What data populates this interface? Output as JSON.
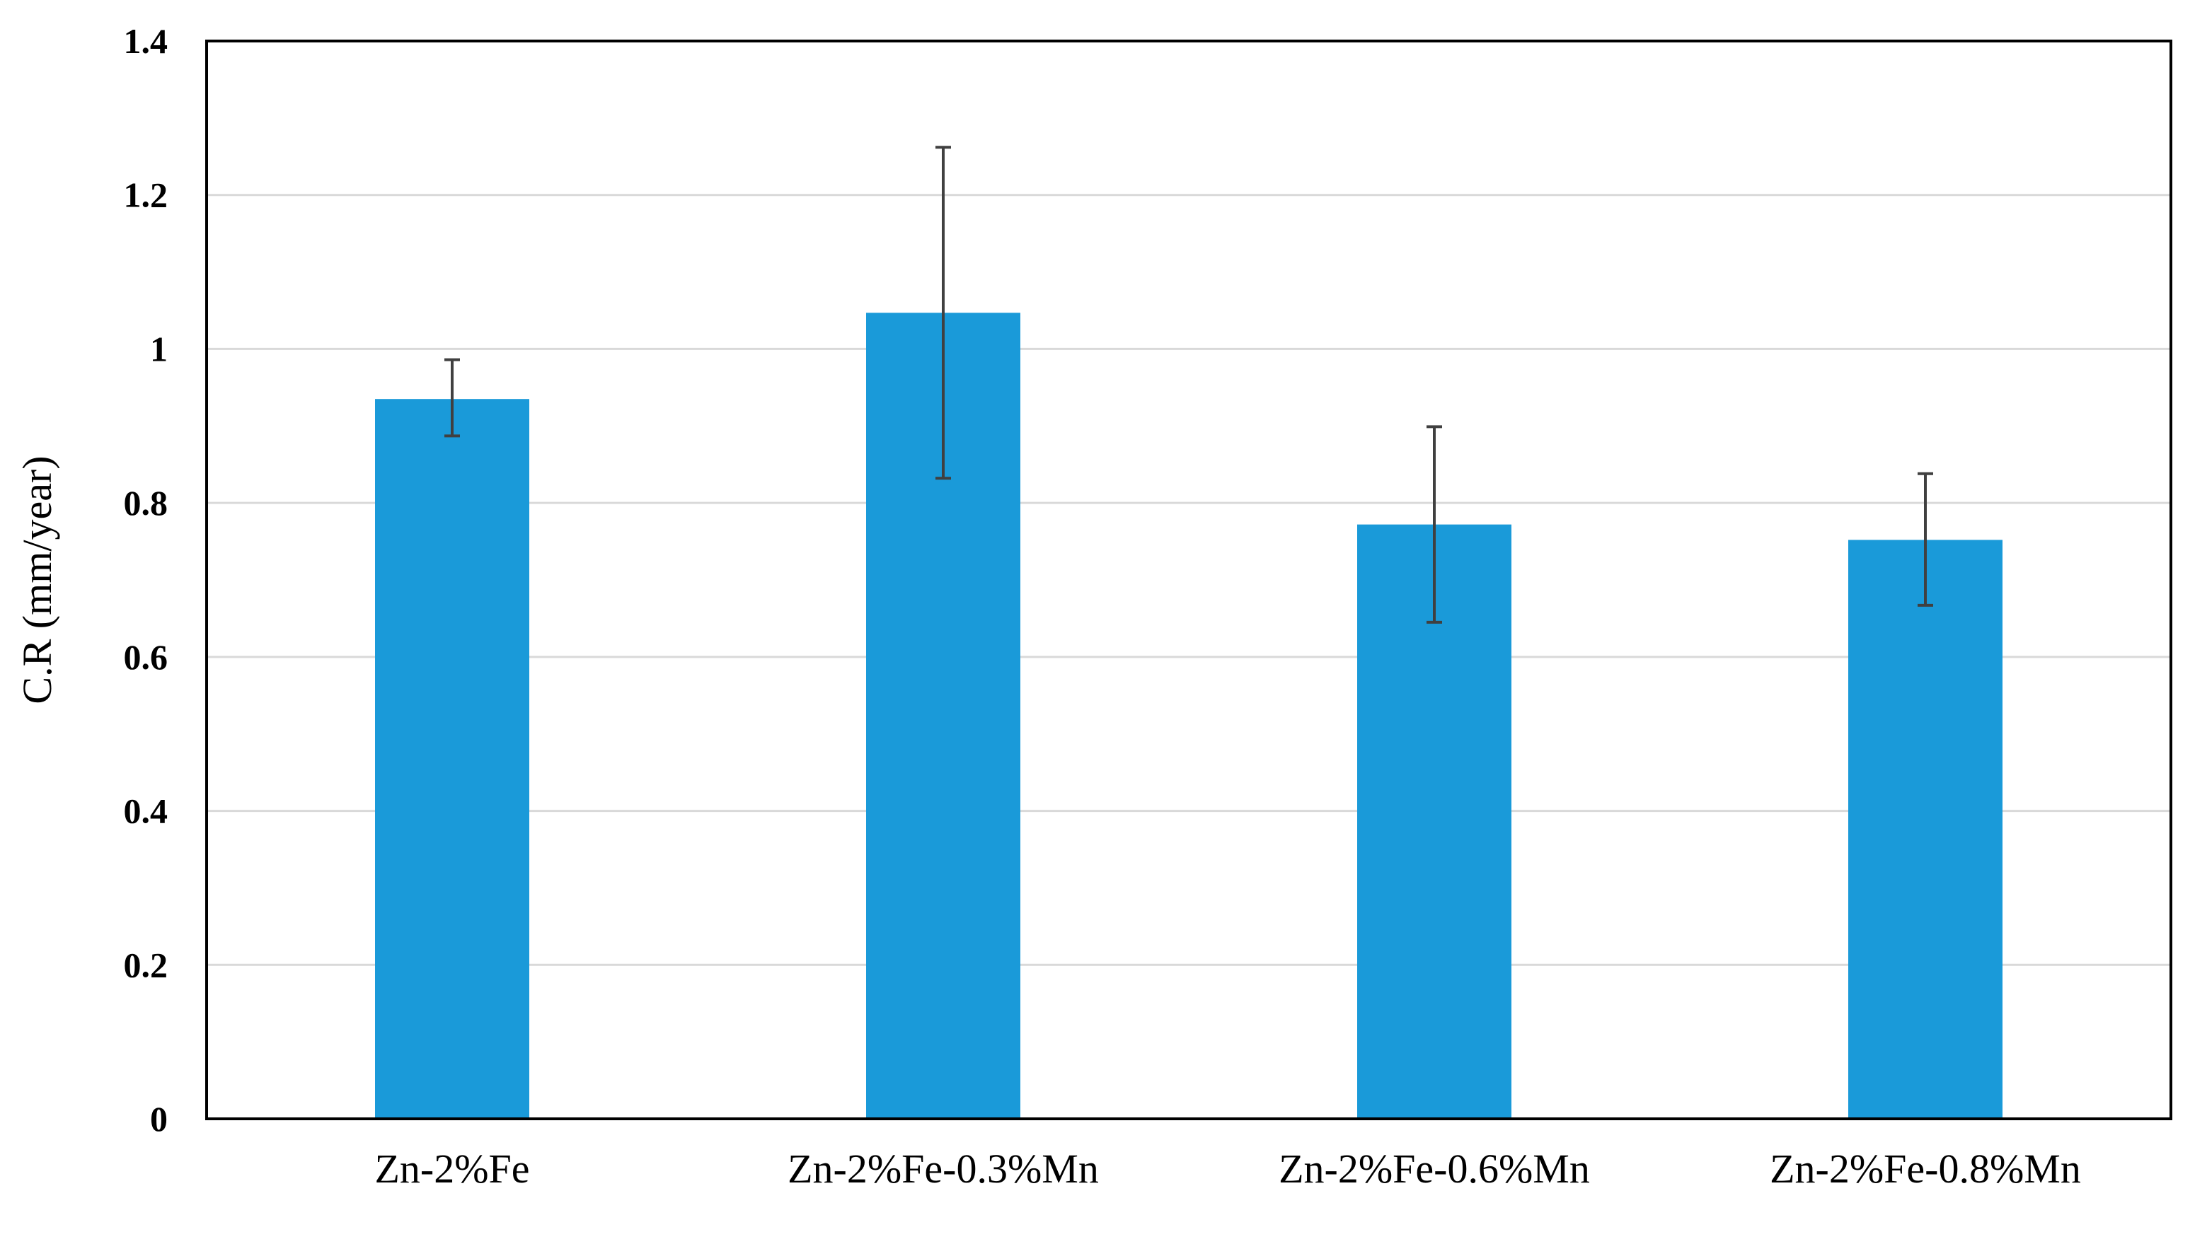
{
  "chart_data": {
    "type": "bar",
    "title": "",
    "xlabel": "",
    "ylabel": "C.R (mm/year)",
    "categories": [
      "Zn-2%Fe",
      "Zn-2%Fe-0.3%Mn",
      "Zn-2%Fe-0.6%Mn",
      "Zn-2%Fe-0.8%Mn"
    ],
    "values": [
      0.935,
      1.047,
      0.772,
      0.752
    ],
    "error_low": [
      0.887,
      0.832,
      0.645,
      0.667
    ],
    "error_high": [
      0.986,
      1.262,
      0.899,
      0.838
    ],
    "ylim": [
      0,
      1.4
    ],
    "yticks": [
      0,
      0.2,
      0.4,
      0.6,
      0.8,
      1,
      1.2,
      1.4
    ],
    "ytick_labels": [
      "0",
      "0.2",
      "0.4",
      "0.6",
      "0.8",
      "1",
      "1.2",
      "1.4"
    ],
    "grid": true,
    "legend": "none"
  },
  "colors": {
    "bar": "#1a9ad9",
    "error_bar": "#404040",
    "grid": "#d9d9d9",
    "axis": "#000000"
  }
}
